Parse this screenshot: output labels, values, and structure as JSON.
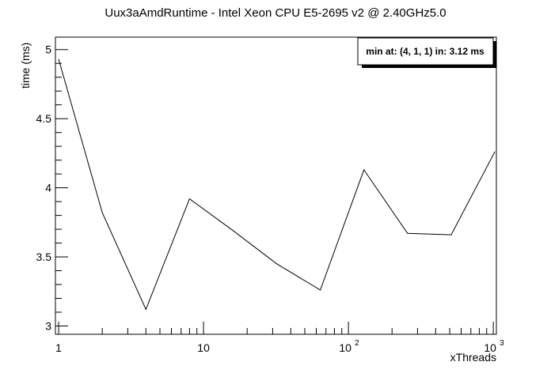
{
  "chart_data": {
    "type": "line",
    "title": "Uux3aAmdRuntime - Intel Xeon CPU E5-2695 v2 @ 2.40GHz5.0",
    "xlabel": "xThreads",
    "ylabel": "time (ms)",
    "xscale": "log",
    "xlim": [
      0.95,
      1050
    ],
    "ylim": [
      2.94,
      5.09
    ],
    "grid": false,
    "x": [
      1,
      2,
      4,
      8,
      16,
      32,
      64,
      128,
      256,
      512,
      1024
    ],
    "series": [
      {
        "values": [
          4.93,
          3.82,
          3.12,
          3.92,
          3.69,
          3.45,
          3.26,
          4.13,
          3.67,
          3.66,
          4.26
        ],
        "color": "#000000"
      }
    ],
    "y_ticks": [
      "3",
      "3.5",
      "4",
      "4.5",
      "5"
    ],
    "x_ticks": [
      {
        "value": 1,
        "base": "1",
        "exp": ""
      },
      {
        "value": 10,
        "base": "10",
        "exp": ""
      },
      {
        "value": 100,
        "base": "10",
        "exp": "2"
      },
      {
        "value": 1000,
        "base": "10",
        "exp": "3"
      }
    ],
    "legend": {
      "text": "min at: (4, 1, 1) in: 3.12 ms",
      "position": "top-right"
    }
  }
}
